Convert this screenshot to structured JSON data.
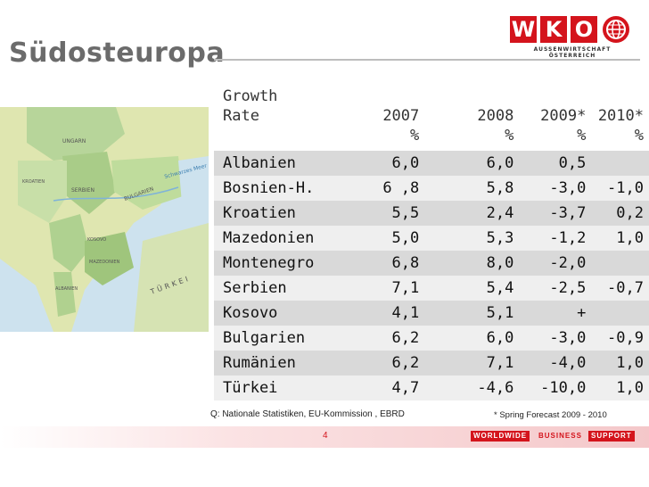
{
  "slide": {
    "title": "Südosteuropa",
    "page_number": "4"
  },
  "logo": {
    "letters": [
      "W",
      "K",
      "O"
    ],
    "subtitle": "AUSSENWIRTSCHAFT ÖSTERREICH"
  },
  "map": {
    "labels": [
      "UNGARN",
      "SERBIEN",
      "BULGARIEN",
      "Schwarzes Meer",
      "KOSOVO",
      "MAZEDONIEN",
      "TÜRKEI",
      "KROATIEN",
      "ALBANIEN"
    ]
  },
  "table": {
    "header": {
      "label_line1": "Growth",
      "label_line2": "Rate",
      "years": [
        "2007",
        "2008",
        "2009*",
        "2010*"
      ],
      "unit": "%"
    },
    "rows": [
      {
        "country": "Albanien",
        "y2007": "6,0",
        "y2008": "6,0",
        "y2009": "0,5",
        "y2010": ""
      },
      {
        "country": "Bosnien-H.",
        "y2007": "6 ,8",
        "y2008": "5,8",
        "y2009": "-3,0",
        "y2010": "-1,0"
      },
      {
        "country": "Kroatien",
        "y2007": "5,5",
        "y2008": "2,4",
        "y2009": "-3,7",
        "y2010": "0,2"
      },
      {
        "country": "Mazedonien",
        "y2007": "5,0",
        "y2008": "5,3",
        "y2009": "-1,2",
        "y2010": "1,0"
      },
      {
        "country": "Montenegro",
        "y2007": "6,8",
        "y2008": "8,0",
        "y2009": "-2,0",
        "y2010": ""
      },
      {
        "country": "Serbien",
        "y2007": "7,1",
        "y2008": "5,4",
        "y2009": "-2,5",
        "y2010": "-0,7"
      },
      {
        "country": "Kosovo",
        "y2007": "4,1",
        "y2008": "5,1",
        "y2009": "+",
        "y2010": ""
      },
      {
        "country": "Bulgarien",
        "y2007": "6,2",
        "y2008": "6,0",
        "y2009": "-3,0",
        "y2010": "-0,9"
      },
      {
        "country": "Rumänien",
        "y2007": "6,2",
        "y2008": "7,1",
        "y2009": "-4,0",
        "y2010": "1,0"
      },
      {
        "country": "Türkei",
        "y2007": "4,7",
        "y2008": "-4,6",
        "y2009": "-10,0",
        "y2010": "1,0"
      }
    ]
  },
  "notes": {
    "source": "Q: Nationale Statistiken, EU-Kommission , EBRD",
    "forecast": "* Spring Forecast  2009 - 2010"
  },
  "footer": {
    "tags": [
      "WORLDWIDE",
      "BUSINESS",
      "SUPPORT"
    ]
  },
  "colors": {
    "brand_red": "#d4141c",
    "title_gray": "#6b6b6b",
    "row_dark": "#d9d9d9",
    "row_light": "#efefef"
  }
}
